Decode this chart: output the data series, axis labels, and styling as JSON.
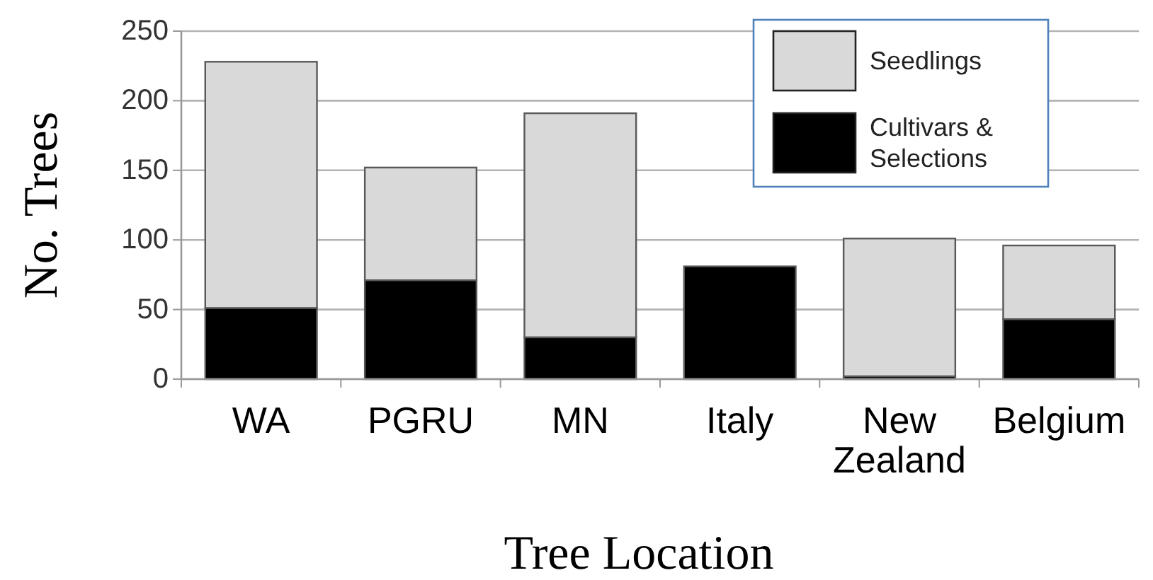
{
  "chart_data": {
    "type": "bar",
    "xlabel": "Tree Location",
    "ylabel": "No. Trees",
    "categories": [
      "WA",
      "PGRU",
      "MN",
      "Italy",
      "New Zealand",
      "Belgium"
    ],
    "series": [
      {
        "name": "Cultivars & Selections",
        "color": "#000000",
        "values": [
          51,
          71,
          30,
          81,
          2,
          43
        ]
      },
      {
        "name": "Seedlings",
        "color": "#d9d9d9",
        "values": [
          177,
          81,
          161,
          0,
          99,
          53
        ]
      }
    ],
    "stacked": true,
    "ylim": [
      0,
      250
    ],
    "yticks": [
      0,
      50,
      100,
      150,
      200,
      250
    ],
    "grid": "y",
    "legend": "top right"
  }
}
